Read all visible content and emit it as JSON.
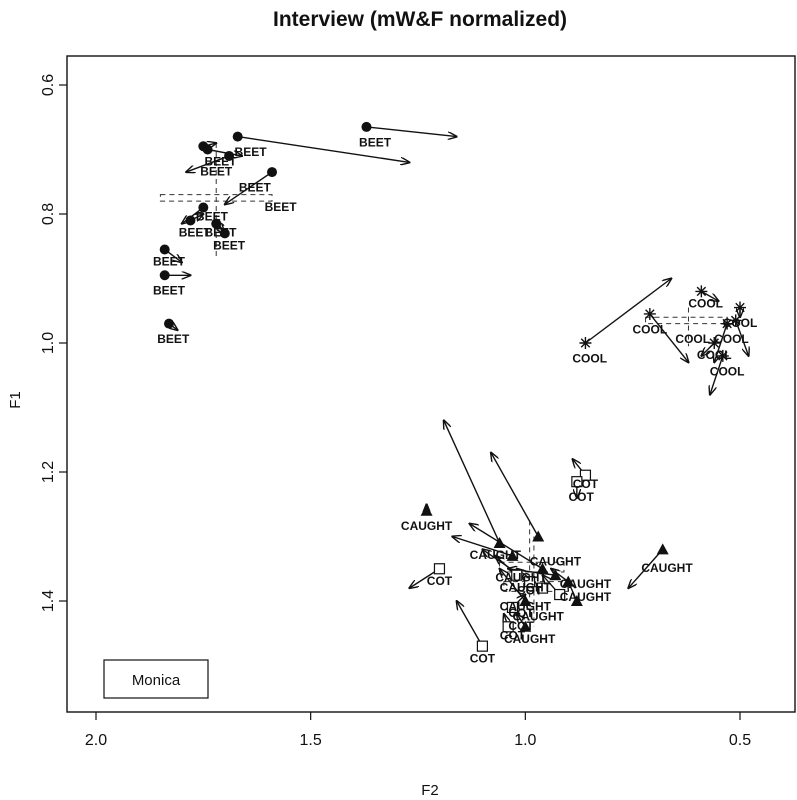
{
  "chart_data": {
    "type": "scatter",
    "title": "Interview (mW&F normalized)",
    "xlabel": "F2",
    "ylabel": "F1",
    "xlim": [
      2.0,
      0.35
    ],
    "ylim": [
      0.56,
      1.72
    ],
    "x_reversed": true,
    "y_reversed": true,
    "x_ticks": [
      2.0,
      1.5,
      1.0,
      0.5
    ],
    "x_tick_labels": [
      "2.0",
      "1.5",
      "1.0",
      "0.5"
    ],
    "y_ticks": [
      0.6,
      0.8,
      1.0,
      1.2,
      1.4
    ],
    "y_tick_labels": [
      "0.6",
      "0.8",
      "1.0",
      "1.2",
      "1.4"
    ],
    "legend": {
      "position": "bottom-left",
      "entries": [
        "Monica"
      ]
    },
    "series": [
      {
        "name": "BEET",
        "marker": "circle",
        "points": [
          {
            "x": 1.37,
            "y": 0.665,
            "dx": 1.16,
            "dy": 0.68
          },
          {
            "x": 1.67,
            "y": 0.68,
            "dx": 1.27,
            "dy": 0.72
          },
          {
            "x": 1.75,
            "y": 0.695,
            "dx": 1.72,
            "dy": 0.69
          },
          {
            "x": 1.74,
            "y": 0.7,
            "dx": 1.66,
            "dy": 0.71
          },
          {
            "x": 1.69,
            "y": 0.71,
            "dx": 1.79,
            "dy": 0.735
          },
          {
            "x": 1.59,
            "y": 0.735,
            "dx": 1.7,
            "dy": 0.785
          },
          {
            "x": 1.75,
            "y": 0.79,
            "dx": 1.8,
            "dy": 0.815
          },
          {
            "x": 1.78,
            "y": 0.81,
            "dx": 1.75,
            "dy": 0.8
          },
          {
            "x": 1.72,
            "y": 0.815,
            "dx": 1.7,
            "dy": 0.83
          },
          {
            "x": 1.7,
            "y": 0.83,
            "dx": 1.72,
            "dy": 0.81
          },
          {
            "x": 1.84,
            "y": 0.855,
            "dx": 1.8,
            "dy": 0.875
          },
          {
            "x": 1.84,
            "y": 0.895,
            "dx": 1.78,
            "dy": 0.895
          },
          {
            "x": 1.83,
            "y": 0.97,
            "dx": 1.81,
            "dy": 0.98
          }
        ]
      },
      {
        "name": "COOL",
        "marker": "asterisk",
        "points": [
          {
            "x": 0.86,
            "y": 1.0,
            "dx": 0.66,
            "dy": 0.9
          },
          {
            "x": 0.59,
            "y": 0.92,
            "dx": 0.55,
            "dy": 0.935
          },
          {
            "x": 0.71,
            "y": 0.955,
            "dx": 0.62,
            "dy": 1.03
          },
          {
            "x": 0.5,
            "y": 0.945,
            "dx": 0.5,
            "dy": 0.96
          },
          {
            "x": 0.53,
            "y": 0.97,
            "dx": 0.56,
            "dy": 1.03
          },
          {
            "x": 0.51,
            "y": 0.965,
            "dx": 0.48,
            "dy": 1.02
          },
          {
            "x": 0.54,
            "y": 1.02,
            "dx": 0.57,
            "dy": 1.08
          },
          {
            "x": 0.56,
            "y": 1.0,
            "dx": 0.59,
            "dy": 1.02
          }
        ]
      },
      {
        "name": "CAUGHT",
        "marker": "triangle",
        "points": [
          {
            "x": 0.68,
            "y": 1.32,
            "dx": 0.76,
            "dy": 1.38
          },
          {
            "x": 1.23,
            "y": 1.26,
            "dx": 1.23,
            "dy": 1.25
          },
          {
            "x": 1.06,
            "y": 1.31,
            "dx": 1.19,
            "dy": 1.12
          },
          {
            "x": 0.97,
            "y": 1.3,
            "dx": 1.08,
            "dy": 1.17
          },
          {
            "x": 1.03,
            "y": 1.33,
            "dx": 1.17,
            "dy": 1.3
          },
          {
            "x": 0.96,
            "y": 1.35,
            "dx": 1.13,
            "dy": 1.28
          },
          {
            "x": 0.9,
            "y": 1.37,
            "dx": 0.94,
            "dy": 1.35
          },
          {
            "x": 0.88,
            "y": 1.4,
            "dx": 0.9,
            "dy": 1.37
          },
          {
            "x": 1.0,
            "y": 1.44,
            "dx": 1.02,
            "dy": 1.42
          },
          {
            "x": 1.0,
            "y": 1.4,
            "dx": 1.06,
            "dy": 1.35
          },
          {
            "x": 0.93,
            "y": 1.36,
            "dx": 1.04,
            "dy": 1.35
          }
        ]
      },
      {
        "name": "COT",
        "marker": "square",
        "points": [
          {
            "x": 0.86,
            "y": 1.205,
            "dx": 0.89,
            "dy": 1.18
          },
          {
            "x": 0.88,
            "y": 1.215,
            "dx": 0.88,
            "dy": 1.24
          },
          {
            "x": 1.2,
            "y": 1.35,
            "dx": 1.27,
            "dy": 1.38
          },
          {
            "x": 1.1,
            "y": 1.47,
            "dx": 1.16,
            "dy": 1.4
          },
          {
            "x": 1.04,
            "y": 1.44,
            "dx": 1.05,
            "dy": 1.42
          },
          {
            "x": 1.02,
            "y": 1.36,
            "dx": 1.07,
            "dy": 1.33
          },
          {
            "x": 0.99,
            "y": 1.37,
            "dx": 1.1,
            "dy": 1.32
          },
          {
            "x": 0.96,
            "y": 1.38,
            "dx": 1.02,
            "dy": 1.35
          },
          {
            "x": 0.92,
            "y": 1.39,
            "dx": 0.96,
            "dy": 1.36
          },
          {
            "x": 1.03,
            "y": 1.41,
            "dx": 1.0,
            "dy": 1.39
          }
        ]
      }
    ],
    "labels": [
      {
        "text": "BEET",
        "x": 1.35,
        "y": 0.695
      },
      {
        "text": "BEET",
        "x": 1.64,
        "y": 0.71
      },
      {
        "text": "BEET",
        "x": 1.71,
        "y": 0.725
      },
      {
        "text": "BEET",
        "x": 1.72,
        "y": 0.74
      },
      {
        "text": "BEET",
        "x": 1.63,
        "y": 0.765
      },
      {
        "text": "BEET",
        "x": 1.57,
        "y": 0.795
      },
      {
        "text": "BEET",
        "x": 1.73,
        "y": 0.81
      },
      {
        "text": "BEET",
        "x": 1.77,
        "y": 0.835
      },
      {
        "text": "BEET",
        "x": 1.71,
        "y": 0.835
      },
      {
        "text": "BEET",
        "x": 1.69,
        "y": 0.855
      },
      {
        "text": "BEET",
        "x": 1.83,
        "y": 0.88
      },
      {
        "text": "BEET",
        "x": 1.83,
        "y": 0.925
      },
      {
        "text": "BEET",
        "x": 1.82,
        "y": 1.0
      },
      {
        "text": "COOL",
        "x": 0.58,
        "y": 0.945
      },
      {
        "text": "COOL",
        "x": 0.71,
        "y": 0.985
      },
      {
        "text": "COOL",
        "x": 0.5,
        "y": 0.975
      },
      {
        "text": "COOL",
        "x": 0.52,
        "y": 1.0
      },
      {
        "text": "COOL",
        "x": 0.61,
        "y": 1.0
      },
      {
        "text": "COOL",
        "x": 0.56,
        "y": 1.025
      },
      {
        "text": "COOL",
        "x": 0.53,
        "y": 1.05
      },
      {
        "text": "COOL",
        "x": 0.85,
        "y": 1.03
      },
      {
        "text": "COT",
        "x": 0.86,
        "y": 1.225
      },
      {
        "text": "COT",
        "x": 0.87,
        "y": 1.245
      },
      {
        "text": "CAUGHT",
        "x": 1.23,
        "y": 1.29
      },
      {
        "text": "CAUGHT",
        "x": 1.07,
        "y": 1.335
      },
      {
        "text": "CAUGHT",
        "x": 0.93,
        "y": 1.345
      },
      {
        "text": "CAUGHT",
        "x": 0.67,
        "y": 1.355
      },
      {
        "text": "CAUGHT",
        "x": 0.86,
        "y": 1.38
      },
      {
        "text": "CAUGHT",
        "x": 0.86,
        "y": 1.4
      },
      {
        "text": "CAUGHT",
        "x": 1.01,
        "y": 1.37
      },
      {
        "text": "CAUGHT",
        "x": 1.0,
        "y": 1.385
      },
      {
        "text": "CAUGHT",
        "x": 1.0,
        "y": 1.415
      },
      {
        "text": "CAUGHT",
        "x": 0.97,
        "y": 1.43
      },
      {
        "text": "CAUGHT",
        "x": 0.99,
        "y": 1.465
      },
      {
        "text": "COT",
        "x": 1.2,
        "y": 1.375
      },
      {
        "text": "COT",
        "x": 0.99,
        "y": 1.39
      },
      {
        "text": "COT",
        "x": 1.01,
        "y": 1.425
      },
      {
        "text": "COT",
        "x": 1.01,
        "y": 1.445
      },
      {
        "text": "COT",
        "x": 1.03,
        "y": 1.46
      },
      {
        "text": "COT",
        "x": 1.1,
        "y": 1.495
      }
    ],
    "mean_boxes": [
      {
        "x1": 1.85,
        "x2": 1.59,
        "y1": 0.77,
        "y2": 0.78,
        "vx": 1.72,
        "vy1": 0.69,
        "vy2": 0.87
      },
      {
        "x1": 0.72,
        "x2": 0.53,
        "y1": 0.96,
        "y2": 0.97,
        "vx": 0.62,
        "vy1": 0.945,
        "vy2": 1.005
      },
      {
        "x1": 1.06,
        "x2": 0.91,
        "y1": 1.34,
        "y2": 1.355,
        "vx": 0.99,
        "vy1": 1.275,
        "vy2": 1.43
      },
      {
        "x1": 1.05,
        "x2": 0.9,
        "y1": 1.37,
        "y2": 1.385,
        "vx": 0.98,
        "vy1": 1.3,
        "vy2": 1.44
      }
    ]
  }
}
